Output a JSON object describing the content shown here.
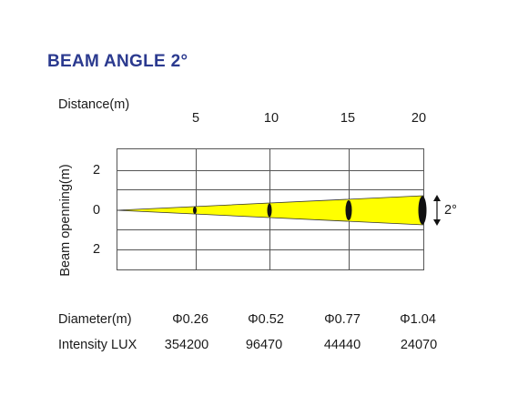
{
  "title": "BEAM ANGLE 2°",
  "distance_label": "Distance(m)",
  "distances": [
    "5",
    "10",
    "15",
    "20"
  ],
  "beam_axis_label": "Beam openning(m)",
  "beam_ticks": [
    "2",
    "0",
    "2"
  ],
  "angle_label": "2°",
  "diameter_label": "Diameter(m)",
  "intensity_label": "Intensity LUX",
  "diameters": [
    "Φ0.26",
    "Φ0.52",
    "Φ0.77",
    "Φ1.04"
  ],
  "intensities": [
    "354200",
    "96470",
    "44440",
    "24070"
  ],
  "colors": {
    "title": "#2b3a8f",
    "beam": "#ffff00",
    "grid": "#555555",
    "spot": "#111111"
  }
}
